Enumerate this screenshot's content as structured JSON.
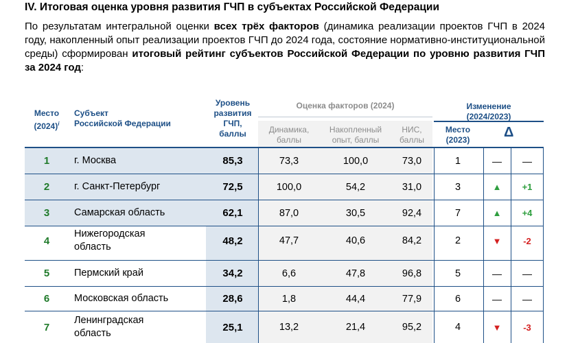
{
  "heading": "IV. Итоговая оценка уровня развития ГЧП в субъектах Российской Федерации",
  "intro": {
    "p1": "По результатам интегральной оценки ",
    "b1": "всех трёх факторов",
    "p2": " (динамика реализации проектов ГЧП в 2024 году, накопленный опыт реализации проектов ГЧП до 2024 года, состояние нормативно-институциональной среды) сформирован ",
    "b2": "итоговый рейтинг субъектов Российской Федерации по уровню развития ГЧП за 2024 год",
    "p3": ":"
  },
  "table": {
    "headers": {
      "rank_l1": "Место",
      "rank_l2": "(2024)",
      "rank_sup": "i",
      "subject_l1": "Субъект",
      "subject_l2": "Российской Федерации",
      "level_l1": "Уровень",
      "level_l2": "развития",
      "level_l3": "ГЧП,",
      "level_l4": "баллы",
      "factors_group": "Оценка факторов (2024)",
      "dyn_l1": "Динамика,",
      "dyn_l2": "баллы",
      "acc_l1": "Накопленный",
      "acc_l2": "опыт, баллы",
      "nis_l1": "НИС,",
      "nis_l2": "баллы",
      "change_l1": "Изменение",
      "change_l2": "(2024/2023)",
      "place_l1": "Место",
      "place_l2": "(2023)",
      "delta": "Δ"
    },
    "rows": [
      {
        "rank": "1",
        "name": "г. Москва",
        "level": "85,3",
        "dyn": "73,3",
        "acc": "100,0",
        "nis": "73,0",
        "place": "1",
        "arrow": "—",
        "change": "—",
        "trend": "none"
      },
      {
        "rank": "2",
        "name": "г. Санкт-Петербург",
        "level": "72,5",
        "dyn": "100,0",
        "acc": "54,2",
        "nis": "31,0",
        "place": "3",
        "arrow": "▲",
        "change": "+1",
        "trend": "up"
      },
      {
        "rank": "3",
        "name": "Самарская область",
        "level": "62,1",
        "dyn": "87,0",
        "acc": "30,5",
        "nis": "92,4",
        "place": "7",
        "arrow": "▲",
        "change": "+4",
        "trend": "up"
      },
      {
        "rank": "4",
        "name_l1": "Нижегородская",
        "name_l2": "область",
        "level": "48,2",
        "dyn": "47,7",
        "acc": "40,6",
        "nis": "84,2",
        "place": "2",
        "arrow": "▼",
        "change": "-2",
        "trend": "down"
      },
      {
        "rank": "5",
        "name": "Пермский край",
        "level": "34,2",
        "dyn": "6,6",
        "acc": "47,8",
        "nis": "96,8",
        "place": "5",
        "arrow": "—",
        "change": "—",
        "trend": "none"
      },
      {
        "rank": "6",
        "name": "Московская область",
        "level": "28,6",
        "dyn": "1,8",
        "acc": "44,4",
        "nis": "77,9",
        "place": "6",
        "arrow": "—",
        "change": "—",
        "trend": "none"
      },
      {
        "rank": "7",
        "name_l1": "Ленинградская",
        "name_l2": "область",
        "level": "25,1",
        "dyn": "13,2",
        "acc": "21,4",
        "nis": "95,2",
        "place": "4",
        "arrow": "▼",
        "change": "-3",
        "trend": "down"
      }
    ]
  },
  "colors": {
    "header_blue": "#1d4f86",
    "rank_green": "#1f7a2a",
    "up_green": "#2e9e3e",
    "down_red": "#d42020",
    "top_shade": "#dde6ef",
    "factor_shade": "#f2f2f2"
  }
}
